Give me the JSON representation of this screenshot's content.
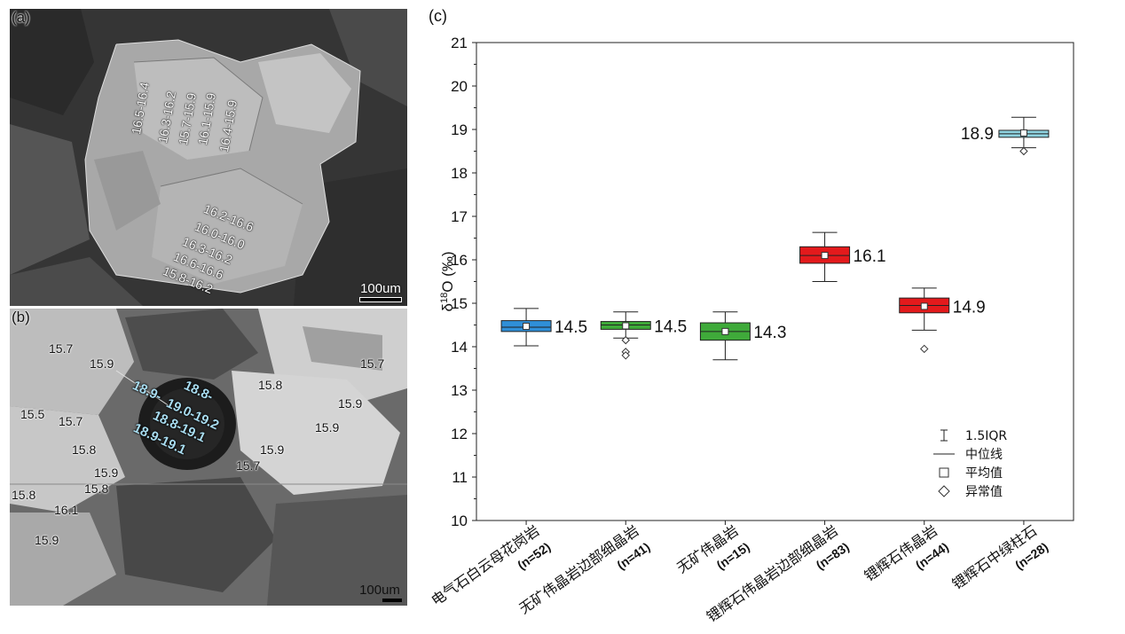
{
  "panel_a": {
    "label": "(a)",
    "scale": "100um",
    "spots": [
      {
        "text": "16.5-16.4"
      },
      {
        "text": "16.3-16.2"
      },
      {
        "text": "15.7-15.9"
      },
      {
        "text": "16.1-15.9"
      },
      {
        "text": "16.4-15.9"
      },
      {
        "text": "16.2-16.6"
      },
      {
        "text": "16.0-16.0"
      },
      {
        "text": "16.3-16.2"
      },
      {
        "text": "16.6-16.6"
      },
      {
        "text": "15.8-16.2"
      }
    ]
  },
  "panel_b": {
    "label": "(b)",
    "scale": "100um",
    "spots": [
      "15.7",
      "15.9",
      "15.7",
      "15.8",
      "15.5",
      "15.7",
      "15.9",
      "15.9",
      "15.8",
      "15.9",
      "15.7",
      "15.9",
      "15.8",
      "15.8",
      "16.1",
      "15.9"
    ],
    "tourmaline_spots": [
      "18.9-",
      "18.8-",
      "19.0-19.2",
      "18.8-19.1",
      "18.9-19.1"
    ]
  },
  "chart_data": {
    "type": "box",
    "panel_label": "(c)",
    "ylabel": "δ18O (‰)",
    "ylim": [
      10,
      21
    ],
    "yticks": [
      10,
      11,
      12,
      13,
      14,
      15,
      16,
      17,
      18,
      19,
      20,
      21
    ],
    "categories": [
      {
        "name": "电气石白云母花岗岩",
        "n": "(n=52)",
        "q1": 14.35,
        "median": 14.45,
        "q3": 14.6,
        "mean": 14.47,
        "whisker_low": 14.02,
        "whisker_high": 14.88,
        "outliers": [],
        "label": "14.5",
        "color": "#2f8fd8"
      },
      {
        "name": "无矿伟晶岩边部细晶岩",
        "n": "(n=41)",
        "q1": 14.4,
        "median": 14.5,
        "q3": 14.58,
        "mean": 14.48,
        "whisker_low": 14.2,
        "whisker_high": 14.8,
        "outliers": [
          14.15,
          13.88,
          13.8
        ],
        "label": "14.5",
        "color": "#3faa3a"
      },
      {
        "name": "无矿伟晶岩",
        "n": "(n=15)",
        "q1": 14.15,
        "median": 14.35,
        "q3": 14.55,
        "mean": 14.35,
        "whisker_low": 13.7,
        "whisker_high": 14.8,
        "outliers": [],
        "label": "14.3",
        "color": "#3faa3a"
      },
      {
        "name": "锂辉石伟晶岩边部细晶岩",
        "n": "(n=83)",
        "q1": 15.92,
        "median": 16.1,
        "q3": 16.3,
        "mean": 16.1,
        "whisker_low": 15.5,
        "whisker_high": 16.63,
        "outliers": [],
        "label": "16.1",
        "color": "#e31a1c"
      },
      {
        "name": "锂辉石伟晶岩",
        "n": "(n=44)",
        "q1": 14.78,
        "median": 14.95,
        "q3": 15.12,
        "mean": 14.93,
        "whisker_low": 14.38,
        "whisker_high": 15.35,
        "outliers": [
          13.95
        ],
        "label": "14.9",
        "color": "#e31a1c"
      },
      {
        "name": "锂辉石中绿柱石",
        "n": "(n=28)",
        "q1": 18.82,
        "median": 18.9,
        "q3": 18.98,
        "mean": 18.92,
        "whisker_low": 18.58,
        "whisker_high": 19.28,
        "outliers": [
          18.5
        ],
        "label": "18.9",
        "color": "#8fd3e0"
      }
    ],
    "legend": [
      {
        "symbol": "whisker",
        "label": "1.5IQR"
      },
      {
        "symbol": "line",
        "label": "中位线"
      },
      {
        "symbol": "square",
        "label": "平均值"
      },
      {
        "symbol": "diamond",
        "label": "异常值"
      }
    ]
  }
}
